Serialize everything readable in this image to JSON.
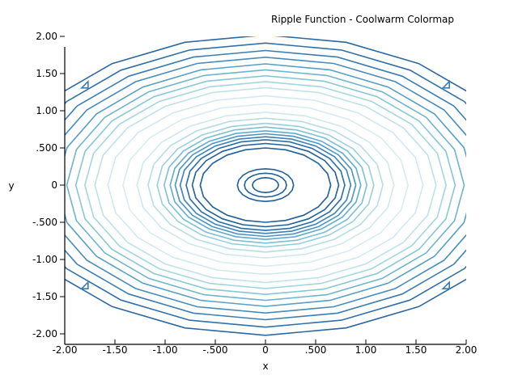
{
  "chart_data": {
    "type": "contour",
    "title": "Ripple Function - Coolwarm Colormap",
    "xlabel": "x",
    "ylabel": "y",
    "xlim": [
      -2.0,
      2.0
    ],
    "ylim": [
      -2.1,
      2.0
    ],
    "x_ticks": [
      {
        "value": -2.0,
        "label": "-2.00"
      },
      {
        "value": -1.5,
        "label": "-1.50"
      },
      {
        "value": -1.0,
        "label": "-1.00"
      },
      {
        "value": -0.5,
        "label": "-.500"
      },
      {
        "value": 0.0,
        "label": "0"
      },
      {
        "value": 0.5,
        "label": ".500"
      },
      {
        "value": 1.0,
        "label": "1.00"
      },
      {
        "value": 1.5,
        "label": "1.50"
      },
      {
        "value": 2.0,
        "label": "2.00"
      }
    ],
    "y_ticks": [
      {
        "value": 2.0,
        "label": "2.00"
      },
      {
        "value": 1.5,
        "label": "1.50"
      },
      {
        "value": 1.0,
        "label": "1.00"
      },
      {
        "value": 0.5,
        "label": ".500"
      },
      {
        "value": 0.0,
        "label": "0"
      },
      {
        "value": -0.5,
        "label": "-.500"
      },
      {
        "value": -1.0,
        "label": "-1.00"
      },
      {
        "value": -1.5,
        "label": "-1.50"
      },
      {
        "value": -2.0,
        "label": "-2.00"
      }
    ],
    "grid": false,
    "legend": "none",
    "contours": [
      {
        "rx": 0.13,
        "ry": 0.1,
        "color": "#1f5f9a"
      },
      {
        "rx": 0.21,
        "ry": 0.16,
        "color": "#1f5f9a"
      },
      {
        "rx": 0.28,
        "ry": 0.22,
        "color": "#1f5f9a"
      },
      {
        "rx": 0.65,
        "ry": 0.5,
        "color": "#1f5f9a"
      },
      {
        "rx": 0.73,
        "ry": 0.56,
        "color": "#1f5f9a"
      },
      {
        "rx": 0.79,
        "ry": 0.61,
        "color": "#2a6ea8"
      },
      {
        "rx": 0.85,
        "ry": 0.65,
        "color": "#3a82b8"
      },
      {
        "rx": 0.9,
        "ry": 0.69,
        "color": "#4a95c4"
      },
      {
        "rx": 0.95,
        "ry": 0.73,
        "color": "#62aacd"
      },
      {
        "rx": 1.01,
        "ry": 0.78,
        "color": "#7cbfd4"
      },
      {
        "rx": 1.08,
        "ry": 0.83,
        "color": "#98cfdc"
      },
      {
        "rx": 1.17,
        "ry": 0.9,
        "color": "#b5dde4"
      },
      {
        "rx": 1.28,
        "ry": 0.98,
        "color": "#cfe8ec"
      },
      {
        "rx": 1.42,
        "ry": 1.09,
        "color": "#d8ecef"
      },
      {
        "rx": 1.57,
        "ry": 1.2,
        "color": "#d0e9ed"
      },
      {
        "rx": 1.7,
        "ry": 1.31,
        "color": "#bde2e8"
      },
      {
        "rx": 1.8,
        "ry": 1.39,
        "color": "#a3d6e0"
      },
      {
        "rx": 1.89,
        "ry": 1.47,
        "color": "#86c6d8"
      },
      {
        "rx": 1.98,
        "ry": 1.55,
        "color": "#6cb4d0"
      },
      {
        "rx": 2.08,
        "ry": 1.63,
        "color": "#559fc6"
      },
      {
        "rx": 2.2,
        "ry": 1.72,
        "color": "#468cbc"
      },
      {
        "rx": 2.32,
        "ry": 1.81,
        "color": "#3a7db4"
      },
      {
        "rx": 2.45,
        "ry": 1.91,
        "color": "#2f70aa"
      },
      {
        "rx": 2.6,
        "ry": 2.02,
        "color": "#2a68a2"
      }
    ],
    "corner_rings": [
      {
        "cx": -1.8,
        "cy": 1.35,
        "color": "#3a7db4"
      },
      {
        "cx": 1.8,
        "cy": 1.35,
        "color": "#3a7db4"
      },
      {
        "cx": -1.8,
        "cy": -1.35,
        "color": "#3a7db4"
      },
      {
        "cx": 1.8,
        "cy": -1.35,
        "color": "#3a7db4"
      }
    ]
  }
}
